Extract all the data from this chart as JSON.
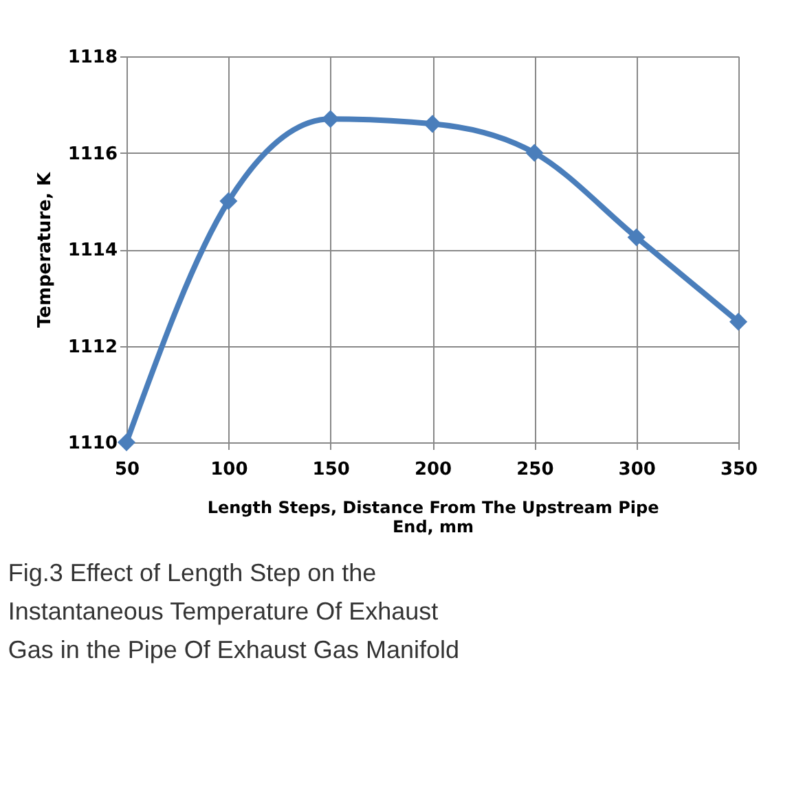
{
  "chart_data": {
    "type": "line",
    "x": [
      50,
      100,
      150,
      200,
      250,
      300,
      350
    ],
    "series": [
      {
        "color": "#4a7ebb",
        "values": [
          1110,
          1115,
          1116.7,
          1116.6,
          1116,
          1114.25,
          1112.5
        ]
      }
    ],
    "xlabel": "Length Steps, Distance From The Upstream Pipe End, mm",
    "ylabel": "Temperature, K",
    "xlim": [
      50,
      350
    ],
    "xticks": [
      50,
      100,
      150,
      200,
      250,
      300,
      350
    ],
    "ylim": [
      1110,
      1118
    ],
    "yticks": [
      1110,
      1112,
      1114,
      1116,
      1118
    ],
    "grid": true,
    "marker": "diamond",
    "line_style": "solid",
    "annotations": [
      "Fig.3 Effect of Length Step on the Instantaneous Temperature Of Exhaust Gas in the Pipe Of Exhaust Gas Manifold"
    ]
  }
}
